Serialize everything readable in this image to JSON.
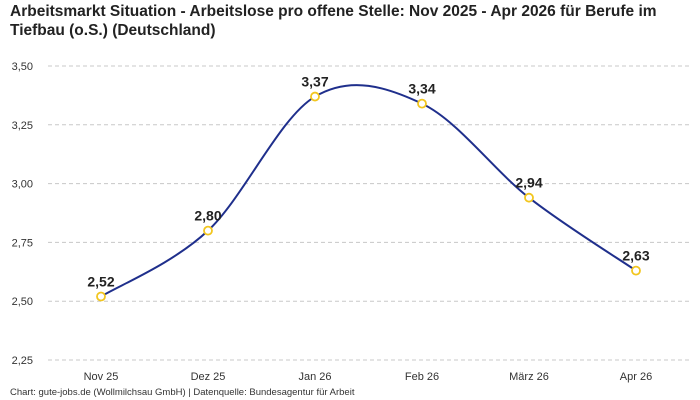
{
  "chart_data": {
    "type": "line",
    "title": "Arbeitsmarkt Situation - Arbeitslose pro offene Stelle: Nov 2025 - Apr 2026 für Berufe im Tiefbau (o.S.) (Deutschland)",
    "xlabel": "",
    "ylabel": "",
    "categories": [
      "Nov 25",
      "Dez 25",
      "Jan 26",
      "Feb 26",
      "März 26",
      "Apr 26"
    ],
    "values": [
      2.52,
      2.8,
      3.37,
      3.34,
      2.94,
      2.63
    ],
    "data_labels": [
      "2,52",
      "2,80",
      "3,37",
      "3,34",
      "2,94",
      "2,63"
    ],
    "ylim": [
      2.25,
      3.5
    ],
    "yticks": [
      2.25,
      2.5,
      2.75,
      3.0,
      3.25,
      3.5
    ],
    "ytick_labels": [
      "2,25",
      "2,50",
      "2,75",
      "3,00",
      "3,25",
      "3,50"
    ],
    "grid": true,
    "grid_style": "dashed-horizontal",
    "legend": "none",
    "colors": {
      "line": "#1f2f8c",
      "marker_stroke": "#f2c61f",
      "marker_fill": "#ffffff",
      "grid": "#c8c8c8"
    }
  },
  "footer": {
    "source_text": "Chart: gute-jobs.de (Wollmilchsau GmbH) | Datenquelle: Bundesagentur für Arbeit"
  }
}
